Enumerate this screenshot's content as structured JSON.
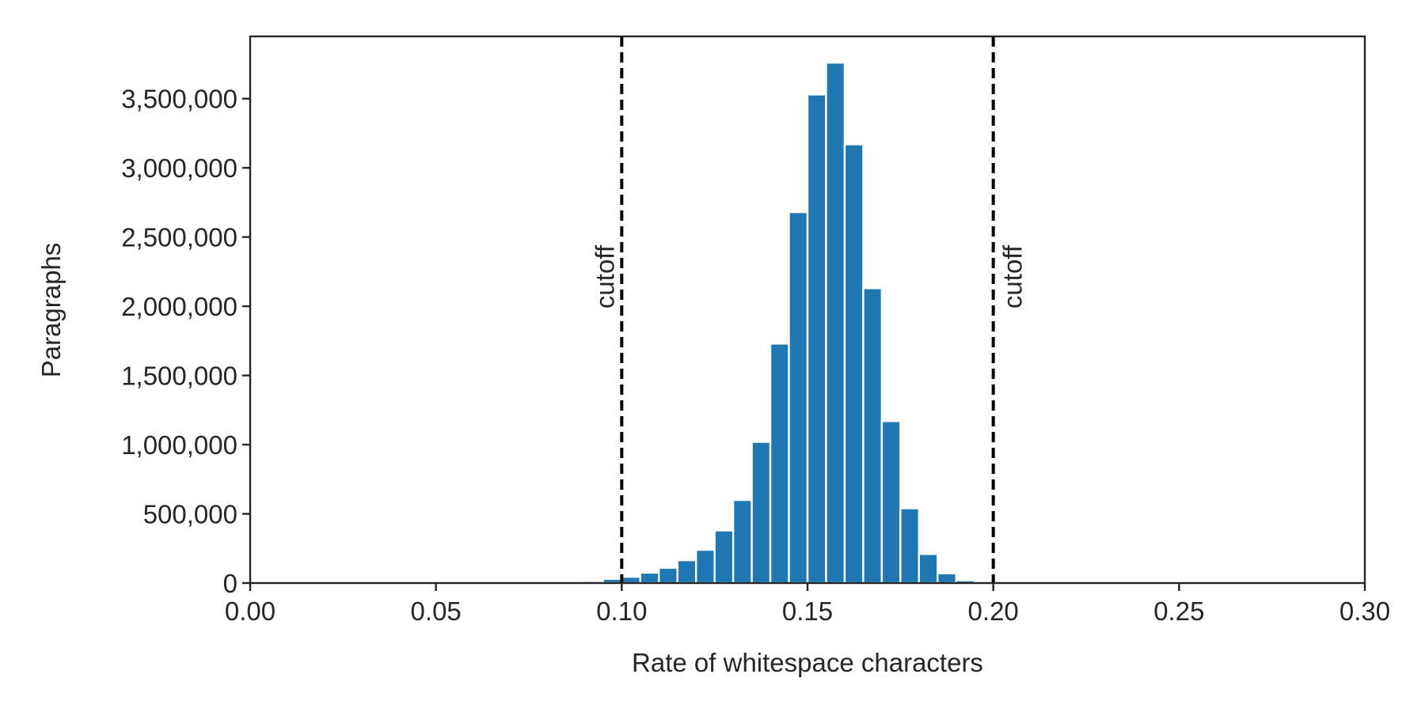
{
  "chart_data": {
    "type": "bar",
    "title": "",
    "xlabel": "Rate of whitespace characters",
    "ylabel": "Paragraphs",
    "xlim": [
      0.0,
      0.3
    ],
    "ylim": [
      0,
      3950000
    ],
    "x_ticks": [
      0.0,
      0.05,
      0.1,
      0.15,
      0.2,
      0.25,
      0.3
    ],
    "x_tick_labels": [
      "0.00",
      "0.05",
      "0.10",
      "0.15",
      "0.20",
      "0.25",
      "0.30"
    ],
    "y_ticks": [
      0,
      500000,
      1000000,
      1500000,
      2000000,
      2500000,
      3000000,
      3500000
    ],
    "y_tick_labels": [
      "0",
      "500,000",
      "1,000,000",
      "1,500,000",
      "2,000,000",
      "2,500,000",
      "3,000,000",
      "3,500,000"
    ],
    "bin_width": 0.005,
    "bins": [
      {
        "x": 0.09,
        "value": 15000
      },
      {
        "x": 0.095,
        "value": 30000
      },
      {
        "x": 0.1,
        "value": 45000
      },
      {
        "x": 0.105,
        "value": 75000
      },
      {
        "x": 0.11,
        "value": 110000
      },
      {
        "x": 0.115,
        "value": 165000
      },
      {
        "x": 0.12,
        "value": 240000
      },
      {
        "x": 0.125,
        "value": 380000
      },
      {
        "x": 0.13,
        "value": 600000
      },
      {
        "x": 0.135,
        "value": 1020000
      },
      {
        "x": 0.14,
        "value": 1730000
      },
      {
        "x": 0.145,
        "value": 2680000
      },
      {
        "x": 0.15,
        "value": 3530000
      },
      {
        "x": 0.155,
        "value": 3760000
      },
      {
        "x": 0.16,
        "value": 3170000
      },
      {
        "x": 0.165,
        "value": 2130000
      },
      {
        "x": 0.17,
        "value": 1170000
      },
      {
        "x": 0.175,
        "value": 540000
      },
      {
        "x": 0.18,
        "value": 210000
      },
      {
        "x": 0.185,
        "value": 70000
      },
      {
        "x": 0.19,
        "value": 20000
      }
    ],
    "bar_color": "#1f77b4",
    "cutoffs": [
      {
        "x": 0.1,
        "label": "cutoff"
      },
      {
        "x": 0.2,
        "label": "cutoff"
      }
    ],
    "grid": false,
    "legend": "none"
  }
}
